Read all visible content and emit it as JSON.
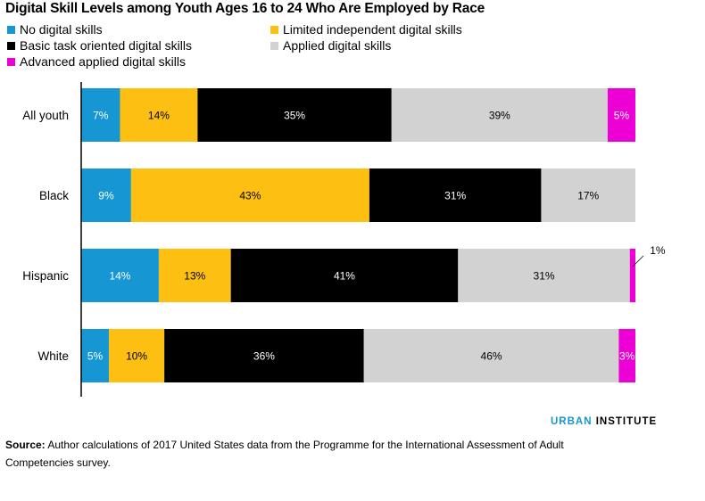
{
  "title": "Digital Skill Levels among Youth Ages 16 to 24 Who Are Employed by Race",
  "logo": {
    "brand": "URBAN",
    "rest": " INSTITUTE"
  },
  "source": {
    "label": "Source:",
    "text": " Author calculations of 2017 United States data from the Programme for the International Assessment of Adult Competencies survey."
  },
  "colors": {
    "no_digital": "#1696d2",
    "limited": "#fdbf11",
    "basic": "#000000",
    "applied": "#d2d2d2",
    "advanced": "#ec00d5"
  },
  "chart_data": {
    "type": "bar",
    "orientation": "horizontal",
    "stacked": true,
    "categories": [
      "All youth",
      "Black",
      "Hispanic",
      "White"
    ],
    "series": [
      {
        "name": "No digital skills",
        "color": "#1696d2",
        "values": [
          7,
          9,
          14,
          5
        ],
        "labels": [
          "7%",
          "9%",
          "14%",
          "5%"
        ]
      },
      {
        "name": "Limited independent digital skills",
        "color": "#fdbf11",
        "values": [
          14,
          43,
          13,
          10
        ],
        "labels": [
          "14%",
          "43%",
          "13%",
          "10%"
        ]
      },
      {
        "name": "Basic task oriented digital skills",
        "color": "#000000",
        "values": [
          35,
          31,
          41,
          36
        ],
        "labels": [
          "35%",
          "31%",
          "41%",
          "36%"
        ]
      },
      {
        "name": "Applied digital skills",
        "color": "#d2d2d2",
        "values": [
          39,
          17,
          31,
          46
        ],
        "labels": [
          "39%",
          "17%",
          "31%",
          "46%"
        ]
      },
      {
        "name": "Advanced applied digital skills",
        "color": "#ec00d5",
        "values": [
          5,
          0,
          1,
          3
        ],
        "labels": [
          "5%",
          "",
          "1%",
          "3%"
        ]
      }
    ],
    "xlim": [
      0,
      100
    ],
    "legend": "top-left"
  }
}
